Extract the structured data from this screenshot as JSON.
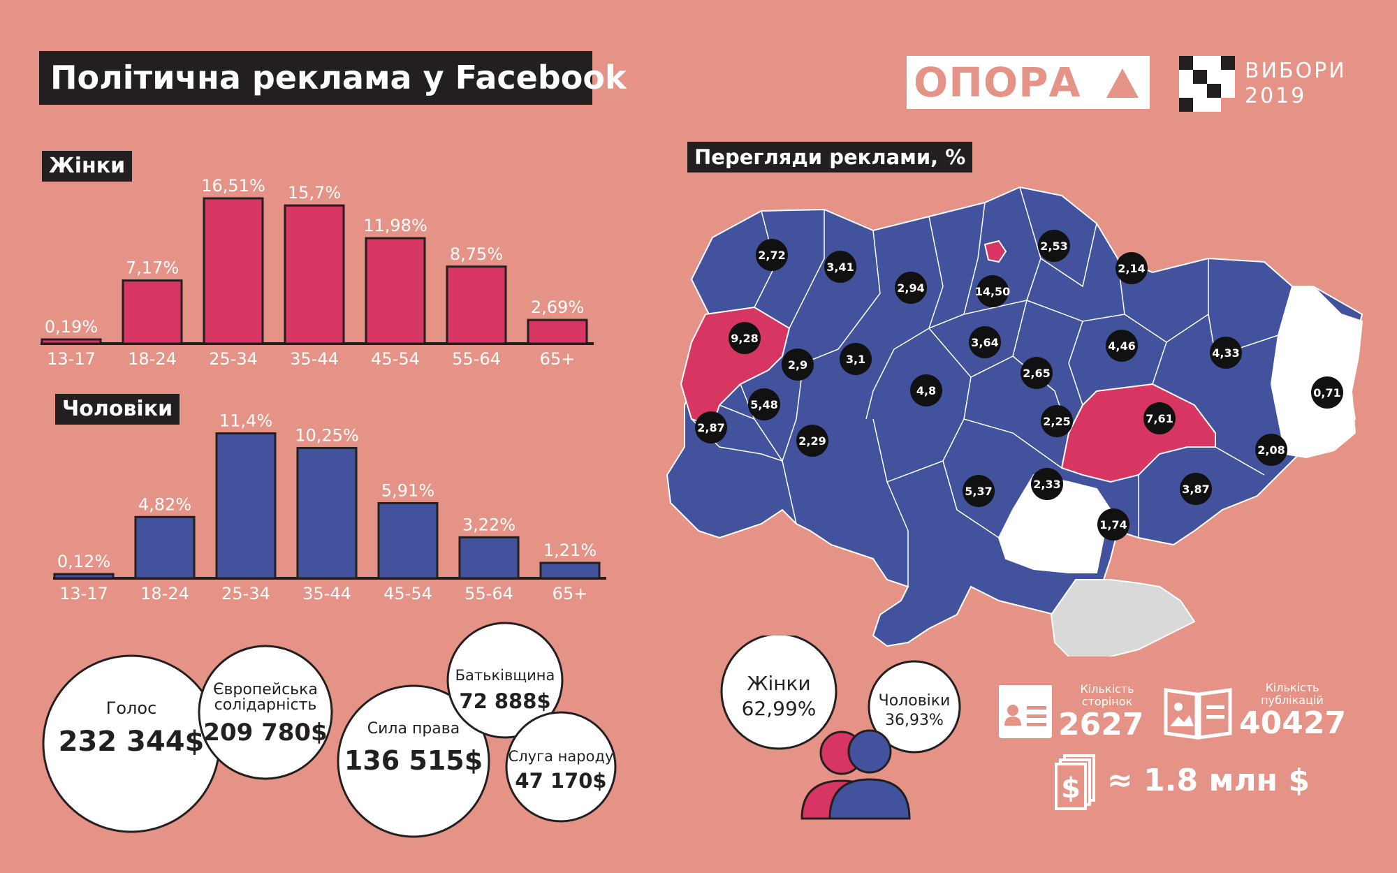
{
  "title": "Політична реклама у Facebook",
  "logos": {
    "opora": "ОПОРА",
    "vybory_line1": "ВИБОРИ",
    "vybory_line2": "2019"
  },
  "map": {
    "title": "Перегляди реклами, %"
  },
  "chart_data": [
    {
      "type": "bar",
      "title": "Жінки",
      "categories": [
        "13-17",
        "18-24",
        "25-34",
        "35-44",
        "45-54",
        "55-64",
        "65+"
      ],
      "values": [
        0.19,
        7.17,
        16.51,
        15.7,
        11.98,
        8.75,
        2.69
      ],
      "labels": [
        "0,19%",
        "7,17%",
        "16,51%",
        "15,7%",
        "11,98%",
        "8,75%",
        "2,69%"
      ],
      "color": "#d73663"
    },
    {
      "type": "bar",
      "title": "Чоловіки",
      "categories": [
        "13-17",
        "18-24",
        "25-34",
        "35-44",
        "45-54",
        "55-64",
        "65+"
      ],
      "values": [
        0.12,
        4.82,
        11.4,
        10.25,
        5.91,
        3.22,
        1.21
      ],
      "labels": [
        "0,12%",
        "4,82%",
        "11,4%",
        "10,25%",
        "5,91%",
        "3,22%",
        "1,21%"
      ],
      "color": "#43529c"
    },
    {
      "type": "bubble",
      "items": [
        {
          "name": "Голос",
          "value": 232344,
          "label": "232 344$"
        },
        {
          "name": "Європейська солідарність",
          "value": 209780,
          "label": "209 780$"
        },
        {
          "name": "Сила права",
          "value": 136515,
          "label": "136 515$"
        },
        {
          "name": "Батьківщина",
          "value": 72888,
          "label": "72 888$"
        },
        {
          "name": "Слуга народу",
          "value": 47170,
          "label": "47 170$"
        }
      ]
    },
    {
      "type": "map",
      "values": [
        "2,72",
        "3,41",
        "2,94",
        "14,50",
        "2,53",
        "2,14",
        "9,28",
        "2,9",
        "3,1",
        "3,64",
        "4,46",
        "4,33",
        "0,71",
        "5,48",
        "2,65",
        "4,8",
        "2,87",
        "2,29",
        "2,25",
        "7,61",
        "2,08",
        "5,37",
        "2,33",
        "3,87",
        "1,74"
      ]
    }
  ],
  "gender": {
    "women_label": "Жінки",
    "women_value": "62,99%",
    "men_label": "Чоловіки",
    "men_value": "36,93%"
  },
  "stats": {
    "pages_label": "Кількість сторінок",
    "pages_value": "2627",
    "pubs_label": "Кількість публікацій",
    "pubs_value": "40427",
    "total": "≈ 1.8 млн $"
  },
  "colors": {
    "background": "#e59387",
    "women": "#d73663",
    "men": "#43529c",
    "dark": "#231f20",
    "crimea": "#d9d9d9"
  }
}
